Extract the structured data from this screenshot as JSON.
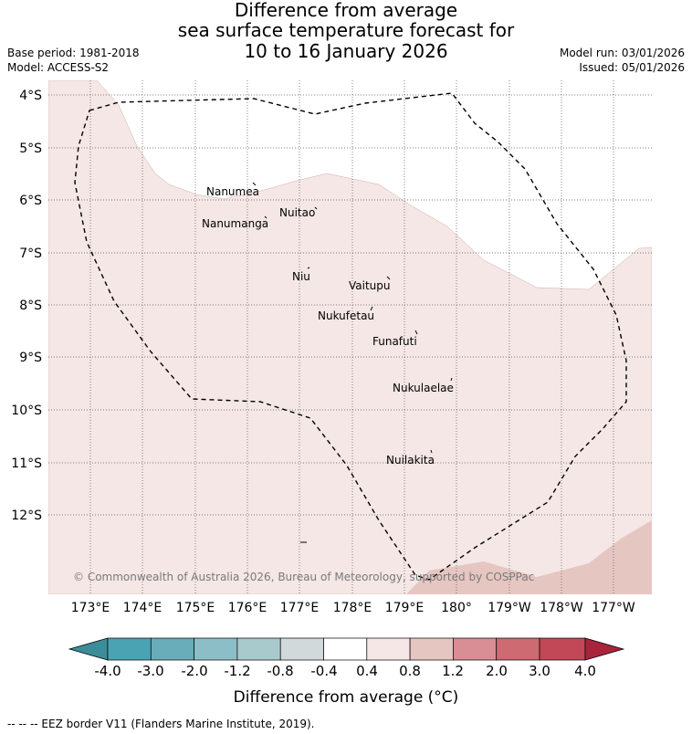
{
  "title": {
    "line1": "Difference from average",
    "line2": "sea surface temperature forecast for",
    "line3": "10 to 16 January 2026"
  },
  "header_left": {
    "base_period": "Base period: 1981-2018",
    "model": "Model: ACCESS-S2"
  },
  "header_right": {
    "model_run": "Model run: 03/01/2026",
    "issued": "Issued: 05/01/2026"
  },
  "map": {
    "lat_labels": [
      "4°S",
      "5°S",
      "6°S",
      "7°S",
      "8°S",
      "9°S",
      "10°S",
      "11°S",
      "12°S"
    ],
    "lon_labels": [
      "173°E",
      "174°E",
      "175°E",
      "176°E",
      "177°E",
      "178°E",
      "179°E",
      "180°",
      "179°W",
      "178°W",
      "177°W"
    ],
    "places": [
      "Nanumea",
      "Nuitao",
      "Nanumanga",
      "Niu",
      "Vaitupu",
      "Nukufetau",
      "Funafuti",
      "Nukulaelae",
      "Nuilakita"
    ],
    "copyright": "© Commonwealth of Australia 2026, Bureau of Meteorology, supported by COSPPac"
  },
  "colorbar": {
    "ticks": [
      "-4.0",
      "-3.0",
      "-2.0",
      "-1.2",
      "-0.8",
      "-0.4",
      "0.4",
      "0.8",
      "1.2",
      "2.0",
      "3.0",
      "4.0"
    ],
    "colors": [
      "#3b8d98",
      "#4aa3b2",
      "#69adba",
      "#8bbec7",
      "#a9cacd",
      "#d1d9da",
      "#ffffff",
      "#f4e7e5",
      "#e6c6c1",
      "#d98d94",
      "#cd6a72",
      "#c24858",
      "#a8243d"
    ],
    "label": "Difference from average (°C)"
  },
  "footer": {
    "legend": "--  --  -- EEZ border V11 (Flanders Marine Institute, 2019)."
  }
}
